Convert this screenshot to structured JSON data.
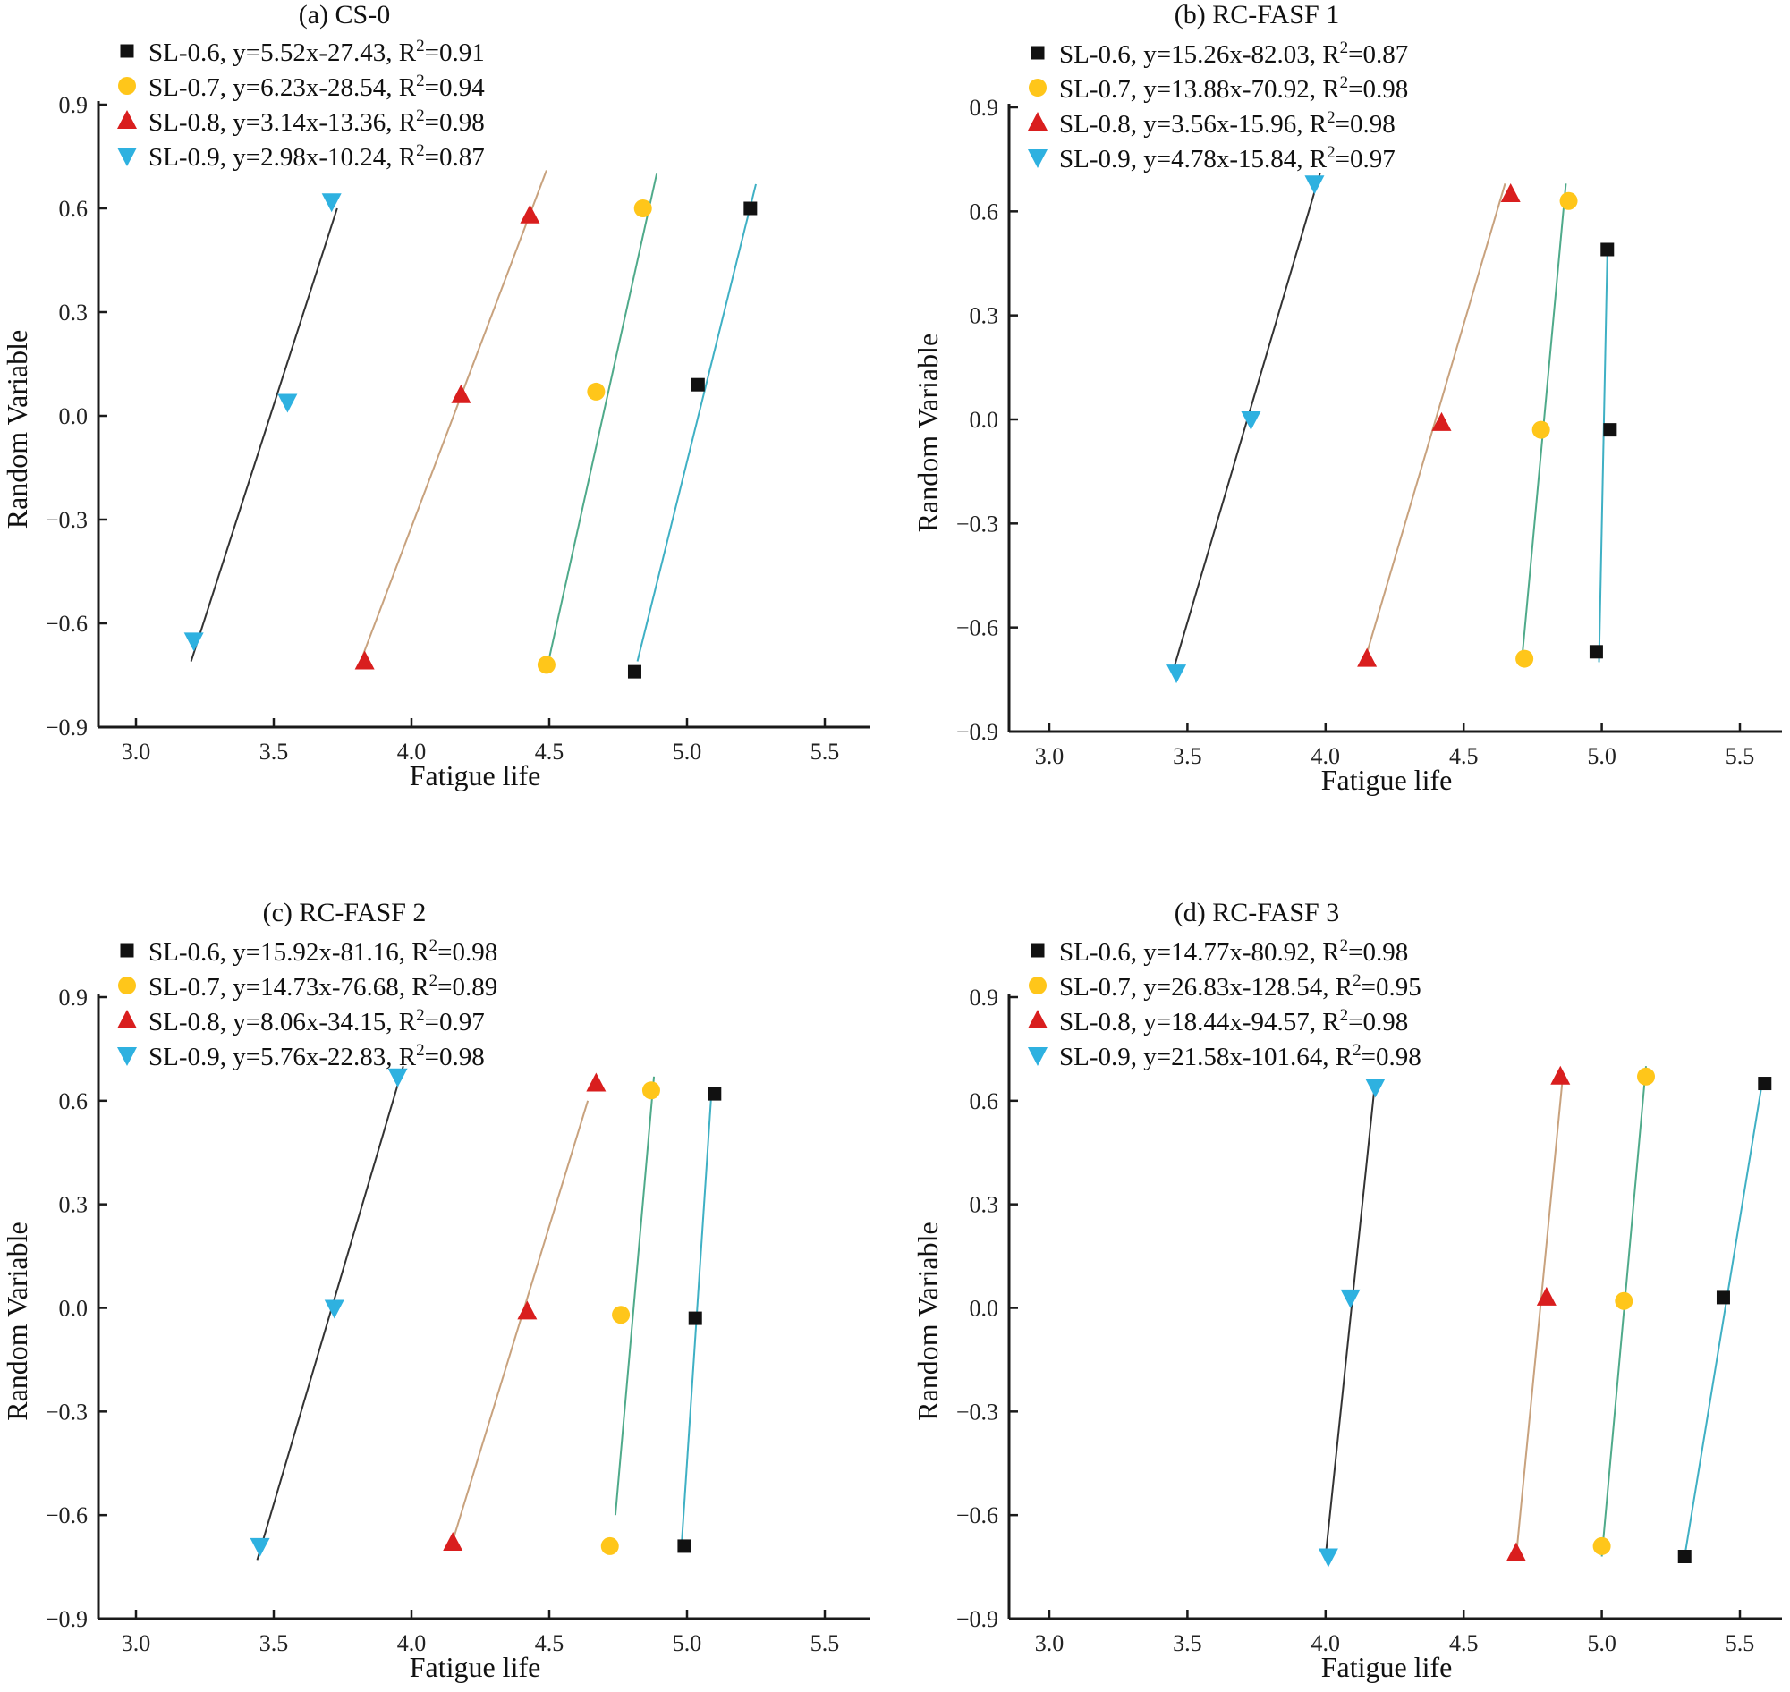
{
  "colors": {
    "SL-0.6": "#111111",
    "SL-0.7": "#ffc61a",
    "SL-0.8": "#d91e1e",
    "SL-0.9": "#2eb1e0",
    "line_SL-0.9": "#333333",
    "line_SL-0.8": "#c8a27e",
    "line_SL-0.7": "#4faa8a",
    "line_SL-0.6": "#3fb0c4"
  },
  "chart_data": [
    {
      "type": "scatter",
      "title": "(a) CS-0",
      "xlabel": "Fatigue life",
      "ylabel": "Random Variable",
      "xlim": [
        2.9,
        5.65
      ],
      "ylim": [
        -0.9,
        0.9
      ],
      "xticks": [
        "3.0",
        "3.5",
        "4.0",
        "4.5",
        "5.0",
        "5.5"
      ],
      "yticks": [
        "0.9",
        "0.6",
        "0.3",
        "0.0",
        "−0.3",
        "−0.6",
        "−0.9"
      ],
      "legend": "top-left",
      "series": [
        {
          "name": "SL-0.6",
          "equation": "y=5.52x-27.43",
          "r2": "=0.91",
          "marker": "square",
          "points": [
            [
              4.81,
              -0.74
            ],
            [
              5.04,
              0.09
            ],
            [
              5.23,
              0.6
            ]
          ],
          "fit": [
            [
              4.82,
              -0.71
            ],
            [
              5.25,
              0.67
            ]
          ]
        },
        {
          "name": "SL-0.7",
          "equation": "y=6.23x-28.54",
          "r2": "=0.94",
          "marker": "circle",
          "points": [
            [
              4.49,
              -0.72
            ],
            [
              4.67,
              0.07
            ],
            [
              4.84,
              0.6
            ]
          ],
          "fit": [
            [
              4.5,
              -0.7
            ],
            [
              4.89,
              0.7
            ]
          ]
        },
        {
          "name": "SL-0.8",
          "equation": "y=3.14x-13.36",
          "r2": "=0.98",
          "marker": "triangle-up",
          "points": [
            [
              3.83,
              -0.71
            ],
            [
              4.18,
              0.06
            ],
            [
              4.43,
              0.58
            ]
          ],
          "fit": [
            [
              3.82,
              -0.7
            ],
            [
              4.49,
              0.71
            ]
          ]
        },
        {
          "name": "SL-0.9",
          "equation": "y=2.98x-10.24",
          "r2": "=0.87",
          "marker": "triangle-down",
          "points": [
            [
              3.21,
              -0.65
            ],
            [
              3.55,
              0.04
            ],
            [
              3.71,
              0.62
            ]
          ],
          "fit": [
            [
              3.2,
              -0.71
            ],
            [
              3.73,
              0.6
            ]
          ]
        }
      ]
    },
    {
      "type": "scatter",
      "title": "(b) RC-FASF 1",
      "xlabel": "Fatigue life",
      "ylabel": "Random Variable",
      "xlim": [
        2.9,
        5.65
      ],
      "ylim": [
        -0.9,
        0.9
      ],
      "xticks": [
        "3.0",
        "3.5",
        "4.0",
        "4.5",
        "5.0",
        "5.5"
      ],
      "yticks": [
        "0.9",
        "0.6",
        "0.3",
        "0.0",
        "−0.3",
        "−0.6",
        "−0.9"
      ],
      "legend": "top-left",
      "series": [
        {
          "name": "SL-0.6",
          "equation": "y=15.26x-82.03",
          "r2": "=0.87",
          "marker": "square",
          "points": [
            [
              4.98,
              -0.67
            ],
            [
              5.03,
              -0.03
            ],
            [
              5.02,
              0.49
            ]
          ],
          "fit": [
            [
              4.99,
              -0.7
            ],
            [
              5.02,
              0.48
            ]
          ]
        },
        {
          "name": "SL-0.7",
          "equation": "y=13.88x-70.92",
          "r2": "=0.98",
          "marker": "circle",
          "points": [
            [
              4.72,
              -0.69
            ],
            [
              4.78,
              -0.03
            ],
            [
              4.88,
              0.63
            ]
          ],
          "fit": [
            [
              4.71,
              -0.7
            ],
            [
              4.87,
              0.68
            ]
          ]
        },
        {
          "name": "SL-0.8",
          "equation": "y=3.56x-15.96",
          "r2": "=0.98",
          "marker": "triangle-up",
          "points": [
            [
              4.15,
              -0.69
            ],
            [
              4.42,
              -0.01
            ],
            [
              4.67,
              0.65
            ]
          ],
          "fit": [
            [
              4.14,
              -0.7
            ],
            [
              4.65,
              0.68
            ]
          ]
        },
        {
          "name": "SL-0.9",
          "equation": "y=4.78x-15.84",
          "r2": "=0.97",
          "marker": "triangle-down",
          "points": [
            [
              3.46,
              -0.73
            ],
            [
              3.73,
              0.0
            ],
            [
              3.96,
              0.68
            ]
          ],
          "fit": [
            [
              3.45,
              -0.72
            ],
            [
              3.98,
              0.71
            ]
          ]
        }
      ]
    },
    {
      "type": "scatter",
      "title": "(c) RC-FASF 2",
      "xlabel": "Fatigue life",
      "ylabel": "Random Variable",
      "xlim": [
        2.9,
        5.65
      ],
      "ylim": [
        -0.9,
        0.9
      ],
      "xticks": [
        "3.0",
        "3.5",
        "4.0",
        "4.5",
        "5.0",
        "5.5"
      ],
      "yticks": [
        "0.9",
        "0.6",
        "0.3",
        "0.0",
        "−0.3",
        "−0.6",
        "−0.9"
      ],
      "legend": "top-left",
      "series": [
        {
          "name": "SL-0.6",
          "equation": "y=15.92x-81.16",
          "r2": "=0.98",
          "marker": "square",
          "points": [
            [
              4.99,
              -0.69
            ],
            [
              5.03,
              -0.03
            ],
            [
              5.1,
              0.62
            ]
          ],
          "fit": [
            [
              4.98,
              -0.69
            ],
            [
              5.09,
              0.64
            ]
          ]
        },
        {
          "name": "SL-0.7",
          "equation": "y=14.73x-76.68",
          "r2": "=0.89",
          "marker": "circle",
          "points": [
            [
              4.72,
              -0.69
            ],
            [
              4.76,
              -0.02
            ],
            [
              4.87,
              0.63
            ]
          ],
          "fit": [
            [
              4.74,
              -0.6
            ],
            [
              4.88,
              0.67
            ]
          ]
        },
        {
          "name": "SL-0.8",
          "equation": "y=8.06x-34.15",
          "r2": "=0.97",
          "marker": "triangle-up",
          "points": [
            [
              4.15,
              -0.68
            ],
            [
              4.42,
              -0.01
            ],
            [
              4.67,
              0.65
            ]
          ],
          "fit": [
            [
              4.14,
              -0.7
            ],
            [
              4.64,
              0.6
            ]
          ]
        },
        {
          "name": "SL-0.9",
          "equation": "y=5.76x-22.83",
          "r2": "=0.98",
          "marker": "triangle-down",
          "points": [
            [
              3.45,
              -0.69
            ],
            [
              3.72,
              0.0
            ],
            [
              3.95,
              0.67
            ]
          ],
          "fit": [
            [
              3.44,
              -0.73
            ],
            [
              3.97,
              0.7
            ]
          ]
        }
      ]
    },
    {
      "type": "scatter",
      "title": "(d) RC-FASF 3",
      "xlabel": "Fatigue life",
      "ylabel": "Random Variable",
      "xlim": [
        2.9,
        5.65
      ],
      "ylim": [
        -0.9,
        0.9
      ],
      "xticks": [
        "3.0",
        "3.5",
        "4.0",
        "4.5",
        "5.0",
        "5.5"
      ],
      "yticks": [
        "0.9",
        "0.6",
        "0.3",
        "0.0",
        "−0.3",
        "−0.6",
        "−0.9"
      ],
      "legend": "top-left",
      "series": [
        {
          "name": "SL-0.6",
          "equation": "y=14.77x-80.92",
          "r2": "=0.98",
          "marker": "square",
          "points": [
            [
              5.3,
              -0.72
            ],
            [
              5.44,
              0.03
            ],
            [
              5.59,
              0.65
            ]
          ],
          "fit": [
            [
              5.3,
              -0.72
            ],
            [
              5.58,
              0.65
            ]
          ]
        },
        {
          "name": "SL-0.7",
          "equation": "y=26.83x-128.54",
          "r2": "=0.95",
          "marker": "circle",
          "points": [
            [
              5.0,
              -0.69
            ],
            [
              5.08,
              0.02
            ],
            [
              5.16,
              0.67
            ]
          ],
          "fit": [
            [
              5.0,
              -0.72
            ],
            [
              5.16,
              0.7
            ]
          ]
        },
        {
          "name": "SL-0.8",
          "equation": "y=18.44x-94.57",
          "r2": "=0.98",
          "marker": "triangle-up",
          "points": [
            [
              4.69,
              -0.71
            ],
            [
              4.8,
              0.03
            ],
            [
              4.85,
              0.67
            ]
          ],
          "fit": [
            [
              4.69,
              -0.72
            ],
            [
              4.86,
              0.68
            ]
          ]
        },
        {
          "name": "SL-0.9",
          "equation": "y=21.58x-101.64",
          "r2": "=0.98",
          "marker": "triangle-down",
          "points": [
            [
              4.01,
              -0.72
            ],
            [
              4.09,
              0.03
            ],
            [
              4.18,
              0.64
            ]
          ],
          "fit": [
            [
              4.0,
              -0.72
            ],
            [
              4.18,
              0.66
            ]
          ]
        }
      ]
    }
  ]
}
